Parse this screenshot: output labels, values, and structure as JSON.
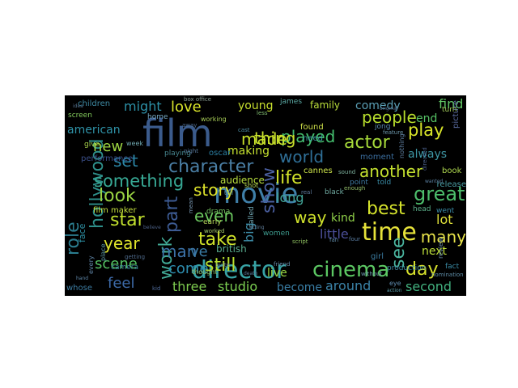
{
  "wordcloud": {
    "words": [
      {
        "text": "film",
        "color": "#3b5b8c"
      },
      {
        "text": "movie",
        "color": "#3f7fa8"
      },
      {
        "text": "director",
        "color": "#38a3a5"
      },
      {
        "text": "time",
        "color": "#e6e23a"
      },
      {
        "text": "cinema",
        "color": "#5cc863"
      },
      {
        "text": "hollywood",
        "color": "#2e8f8a"
      },
      {
        "text": "character",
        "color": "#4a7ea4"
      },
      {
        "text": "something",
        "color": "#37a894"
      },
      {
        "text": "played",
        "color": "#45bf6f"
      },
      {
        "text": "made",
        "color": "#c9e12a"
      },
      {
        "text": "world",
        "color": "#2f6f97"
      },
      {
        "text": "people",
        "color": "#b8de2d"
      },
      {
        "text": "thing",
        "color": "#c8e02c"
      },
      {
        "text": "play",
        "color": "#d9e529"
      },
      {
        "text": "actor",
        "color": "#a6d93a"
      },
      {
        "text": "life",
        "color": "#d3e32a"
      },
      {
        "text": "another",
        "color": "#c4e02f"
      },
      {
        "text": "story",
        "color": "#dfe42b"
      },
      {
        "text": "show",
        "color": "#4a5fa0"
      },
      {
        "text": "part",
        "color": "#3d5b93"
      },
      {
        "text": "look",
        "color": "#9bd543"
      },
      {
        "text": "star",
        "color": "#c1df2e"
      },
      {
        "text": "year",
        "color": "#dde32b"
      },
      {
        "text": "take",
        "color": "#d0e22a"
      },
      {
        "text": "work",
        "color": "#41a995"
      },
      {
        "text": "role",
        "color": "#2b7c8e"
      },
      {
        "text": "best",
        "color": "#d6e42c"
      },
      {
        "text": "way",
        "color": "#cfe12c"
      },
      {
        "text": "great",
        "color": "#4dbe6c"
      },
      {
        "text": "see",
        "color": "#4bb6a0"
      },
      {
        "text": "many",
        "color": "#e8e34a"
      },
      {
        "text": "day",
        "color": "#d8e22c"
      },
      {
        "text": "still",
        "color": "#b6dd2f"
      },
      {
        "text": "even",
        "color": "#6cc860"
      },
      {
        "text": "feel",
        "color": "#3d6aa8"
      },
      {
        "text": "come",
        "color": "#2e8fb0"
      },
      {
        "text": "scene",
        "color": "#54c062"
      },
      {
        "text": "man",
        "color": "#3c72a8"
      },
      {
        "text": "ve",
        "color": "#3a7ba4"
      },
      {
        "text": "three",
        "color": "#7fce50"
      },
      {
        "text": "studio",
        "color": "#7cd052"
      },
      {
        "text": "around",
        "color": "#3b83a8"
      },
      {
        "text": "second",
        "color": "#42b07e"
      },
      {
        "text": "become",
        "color": "#3a7fa6"
      },
      {
        "text": "live",
        "color": "#9ad744"
      },
      {
        "text": "next",
        "color": "#bfe03a"
      },
      {
        "text": "end",
        "color": "#55c164"
      },
      {
        "text": "lot",
        "color": "#e0e23a"
      },
      {
        "text": "long",
        "color": "#43a89a"
      },
      {
        "text": "kind",
        "color": "#8fcf48"
      },
      {
        "text": "big",
        "color": "#3d8aa5"
      },
      {
        "text": "little",
        "color": "#4b4f98"
      },
      {
        "text": "love",
        "color": "#d9e42a"
      },
      {
        "text": "might",
        "color": "#2d91a8"
      },
      {
        "text": "new",
        "color": "#9ed742"
      },
      {
        "text": "set",
        "color": "#2c87a8"
      },
      {
        "text": "american",
        "color": "#2f93a8"
      },
      {
        "text": "find",
        "color": "#61c465"
      },
      {
        "text": "comedy",
        "color": "#5a9fb5"
      },
      {
        "text": "always",
        "color": "#3e96a4"
      },
      {
        "text": "making",
        "color": "#c4e02f"
      },
      {
        "text": "young",
        "color": "#c8df2e"
      },
      {
        "text": "family",
        "color": "#b9dc3a"
      },
      {
        "text": "audience",
        "color": "#b8de3e"
      },
      {
        "text": "british",
        "color": "#58ab8e"
      },
      {
        "text": "oscar",
        "color": "#2b7fa3"
      },
      {
        "text": "need",
        "color": "#3e9aa2"
      },
      {
        "text": "found",
        "color": "#cfe14a"
      },
      {
        "text": "moment",
        "color": "#3c6fa0"
      },
      {
        "text": "cannes",
        "color": "#cde44a"
      },
      {
        "text": "book",
        "color": "#b0d950"
      },
      {
        "text": "release",
        "color": "#4a9ca3"
      },
      {
        "text": "film maker",
        "color": "#c4df3e"
      },
      {
        "text": "performance",
        "color": "#3b4f8a"
      },
      {
        "text": "children",
        "color": "#3e8aa3"
      },
      {
        "text": "home",
        "color": "#74a7c0"
      },
      {
        "text": "screen",
        "color": "#82c95c"
      },
      {
        "text": "give",
        "color": "#a9d34c"
      },
      {
        "text": "playing",
        "color": "#46858e"
      },
      {
        "text": "james",
        "color": "#5aa8a2"
      },
      {
        "text": "jong",
        "color": "#5c8ab0"
      },
      {
        "text": "drama",
        "color": "#73c260"
      },
      {
        "text": "early",
        "color": "#b7d85a"
      },
      {
        "text": "women",
        "color": "#3f9d90"
      },
      {
        "text": "whose",
        "color": "#3c7ba0"
      },
      {
        "text": "face",
        "color": "#2d8ea2"
      },
      {
        "text": "girl",
        "color": "#3b7ca0"
      },
      {
        "text": "point",
        "color": "#3f7aa3"
      },
      {
        "text": "told",
        "color": "#3a8ca6"
      },
      {
        "text": "went",
        "color": "#3b8ca8"
      },
      {
        "text": "fact",
        "color": "#3a8ca6"
      },
      {
        "text": "head",
        "color": "#5cb08a"
      },
      {
        "text": "production",
        "color": "#3d8ba3"
      },
      {
        "text": "picture",
        "color": "#5a6ca0"
      },
      {
        "text": "box office",
        "color": "#8b9f95"
      },
      {
        "text": "working",
        "color": "#a9cf58"
      },
      {
        "text": "week",
        "color": "#6fa8b0"
      },
      {
        "text": "camera",
        "color": "#3f88a0"
      },
      {
        "text": "kid",
        "color": "#4f6b9b"
      },
      {
        "text": "thought",
        "color": "#90c268"
      },
      {
        "text": "cast",
        "color": "#4c8aa0"
      },
      {
        "text": "shot",
        "color": "#b5d857"
      },
      {
        "text": "real",
        "color": "#5f7ca0"
      },
      {
        "text": "called",
        "color": "#6fa4b0"
      },
      {
        "text": "script",
        "color": "#8fc060"
      },
      {
        "text": "friend",
        "color": "#6a92b0"
      },
      {
        "text": "worked",
        "color": "#a2c86a"
      },
      {
        "text": "sound",
        "color": "#7fb4a0"
      },
      {
        "text": "black",
        "color": "#6fa9a0"
      },
      {
        "text": "enough",
        "color": "#92bd6a"
      },
      {
        "text": "review",
        "color": "#6c8ea6"
      },
      {
        "text": "nothing",
        "color": "#5d7d9e"
      },
      {
        "text": "every",
        "color": "#5f84a6"
      },
      {
        "text": "place",
        "color": "#5c9aa8"
      },
      {
        "text": "turn",
        "color": "#a4ce5a"
      },
      {
        "text": "night",
        "color": "#5a7ca0"
      },
      {
        "text": "tell",
        "color": "#60a0b0"
      },
      {
        "text": "mean",
        "color": "#7897b2"
      },
      {
        "text": "less",
        "color": "#80bb70"
      },
      {
        "text": "eye",
        "color": "#5f8cb0"
      },
      {
        "text": "feature",
        "color": "#6d98ac"
      },
      {
        "text": "away",
        "color": "#4c6b90"
      },
      {
        "text": "nomination",
        "color": "#5f8ea8"
      },
      {
        "text": "action",
        "color": "#5a9eac"
      },
      {
        "text": "without",
        "color": "#6f9aae"
      },
      {
        "text": "acting",
        "color": "#5f7c98"
      },
      {
        "text": "quite",
        "color": "#5e7d98"
      },
      {
        "text": "original",
        "color": "#4f6a8a"
      },
      {
        "text": "idea",
        "color": "#55718c"
      },
      {
        "text": "hand",
        "color": "#5f86a8"
      },
      {
        "text": "four",
        "color": "#5a7ca0"
      },
      {
        "text": "believe",
        "color": "#4b5f85"
      },
      {
        "text": "wanted",
        "color": "#5a7fa0"
      },
      {
        "text": "death",
        "color": "#5c7b9a"
      },
      {
        "text": "fan",
        "color": "#5f8aa6"
      },
      {
        "text": "getting",
        "color": "#4f6b8c"
      },
      {
        "text": "directed",
        "color": "#4a5f8a"
      }
    ]
  }
}
